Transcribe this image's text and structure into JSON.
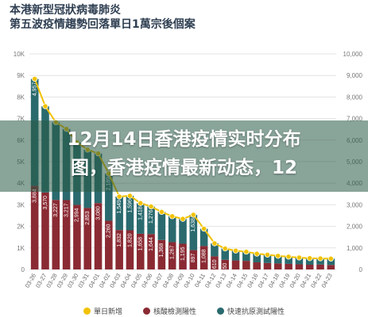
{
  "header": {
    "title_line1": "本港新型冠狀病毒肺炎",
    "title_line2": "第五波疫情趨勢回落單日1萬宗後個案"
  },
  "banner": {
    "line1": "12月14日香港疫情实时分布",
    "line2": "图，香港疫情最新动态，12"
  },
  "colors": {
    "daily": "#f2c200",
    "pcr": "#8a2a33",
    "rat": "#2a6a6e",
    "grid": "#e3e3e3"
  },
  "chart_data": {
    "type": "bar",
    "title": "本港新型冠狀病毒肺炎 第五波疫情趨勢回落單日1萬宗後個案",
    "categories": [
      "03-26",
      "03-27",
      "03-28",
      "03-29",
      "03-30",
      "03-31",
      "04-01",
      "04-02",
      "04-03",
      "04-04",
      "04-05",
      "04-06",
      "04-07",
      "04-08",
      "04-09",
      "04-10",
      "04-11",
      "04-12",
      "04-13",
      "04-14",
      "04-15",
      "04-16",
      "04-17",
      "04-18",
      "04-19",
      "04-20",
      "04-21",
      "04-22",
      "04-23"
    ],
    "y_left": {
      "ticks": [
        "0",
        "1K",
        "2K",
        "3K",
        "4K",
        "5K",
        "6K",
        "7K",
        "8K",
        "9K",
        "10K"
      ],
      "ylim": [
        0,
        10000
      ]
    },
    "y_right": {
      "ticks": [
        "0",
        "1,000",
        "2,000",
        "3,000",
        "4,000",
        "5,000",
        "6,000",
        "7,000",
        "8,000",
        "9,000",
        "10,000"
      ],
      "ylim": [
        0,
        10000
      ]
    },
    "series": [
      {
        "name": "核酸檢測陽性",
        "stack": true,
        "values": [
          3884,
          3570,
          3227,
          3217,
          2994,
          2853,
          3080,
          2260,
          1832,
          1820,
          1658,
          1644,
          1368,
          1267,
          1195,
          897,
          1088,
          610,
          450,
          420,
          400,
          330,
          300,
          280,
          260,
          240,
          220,
          230,
          210
        ]
      },
      {
        "name": "快速抗原測試陽性",
        "stack": true,
        "values": [
          4957,
          4000,
          3600,
          3300,
          2900,
          2700,
          2300,
          2189,
          1549,
          1596,
          1418,
          1276,
          1300,
          1200,
          1150,
          1638,
          800,
          600,
          520,
          450,
          420,
          400,
          380,
          350,
          330,
          310,
          300,
          280,
          290
        ]
      },
      {
        "name": "單日新增",
        "type": "line",
        "values": [
          8841,
          7570,
          6827,
          6517,
          5894,
          5553,
          5380,
          4449,
          3381,
          3416,
          3076,
          2920,
          2668,
          2467,
          2345,
          2535,
          1888,
          1210,
          970,
          870,
          820,
          730,
          680,
          630,
          590,
          550,
          520,
          510,
          500
        ]
      }
    ],
    "data_labels": {
      "pcr": [
        "3,884",
        "3,570",
        "3,227",
        "3,217",
        "2,994",
        "2,853",
        "3,080",
        "2,260",
        "1,832",
        "1,820",
        "1,658",
        "1,644",
        "1,368",
        "1,267",
        "1,195",
        "897",
        "1,088",
        "610",
        "450",
        "",
        "",
        "",
        "",
        "",
        "",
        "",
        "",
        "",
        ""
      ],
      "rat": [
        "4,957",
        "",
        "",
        "",
        "",
        "",
        "",
        "2,189",
        "1,549",
        "1,596",
        "1,418",
        "1,276",
        "",
        "",
        "",
        "1,638",
        "",
        "",
        "",
        "",
        "",
        "",
        "",
        "",
        "",
        "",
        "",
        "",
        ""
      ]
    },
    "legend": [
      "單日新增",
      "核酸檢測陽性",
      "快速抗原測試陽性"
    ],
    "legend_position": "bottom",
    "grid": true
  }
}
